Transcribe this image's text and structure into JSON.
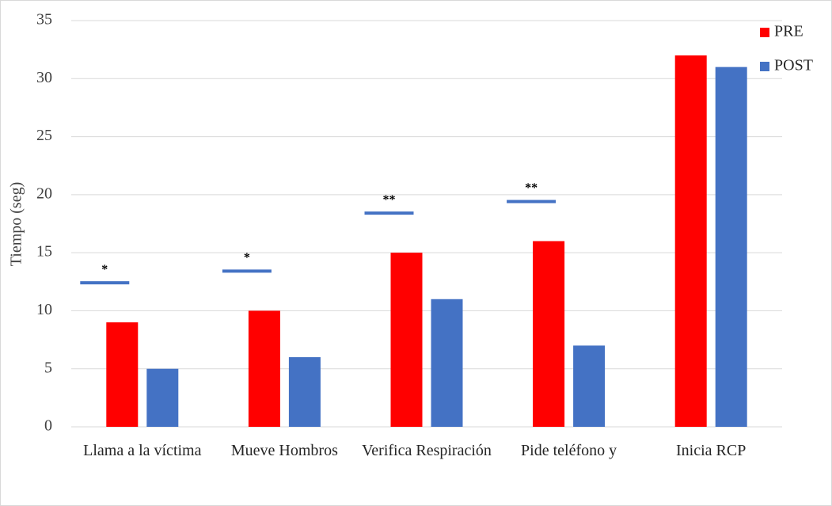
{
  "chart_data": {
    "type": "bar",
    "y_label": "Tiempo (seg)",
    "categories": [
      "Llama a la víctima",
      "Mueve Hombros",
      "Verifica Respiración",
      "Pide teléfono y",
      "Inicia RCP"
    ],
    "series": [
      {
        "name": "PRE",
        "color": "#ff0000",
        "values": [
          9,
          10,
          15,
          16,
          32
        ]
      },
      {
        "name": "POST",
        "color": "#4472c4",
        "values": [
          5,
          6,
          11,
          7,
          31
        ]
      }
    ],
    "annotations": [
      "*",
      "*",
      "**",
      "**",
      null
    ],
    "annotation_color": "#4472c4",
    "ylim": [
      0,
      35
    ],
    "yticks": [
      0,
      5,
      10,
      15,
      20,
      25,
      30,
      35
    ],
    "grid": true,
    "legend": "top-right"
  }
}
